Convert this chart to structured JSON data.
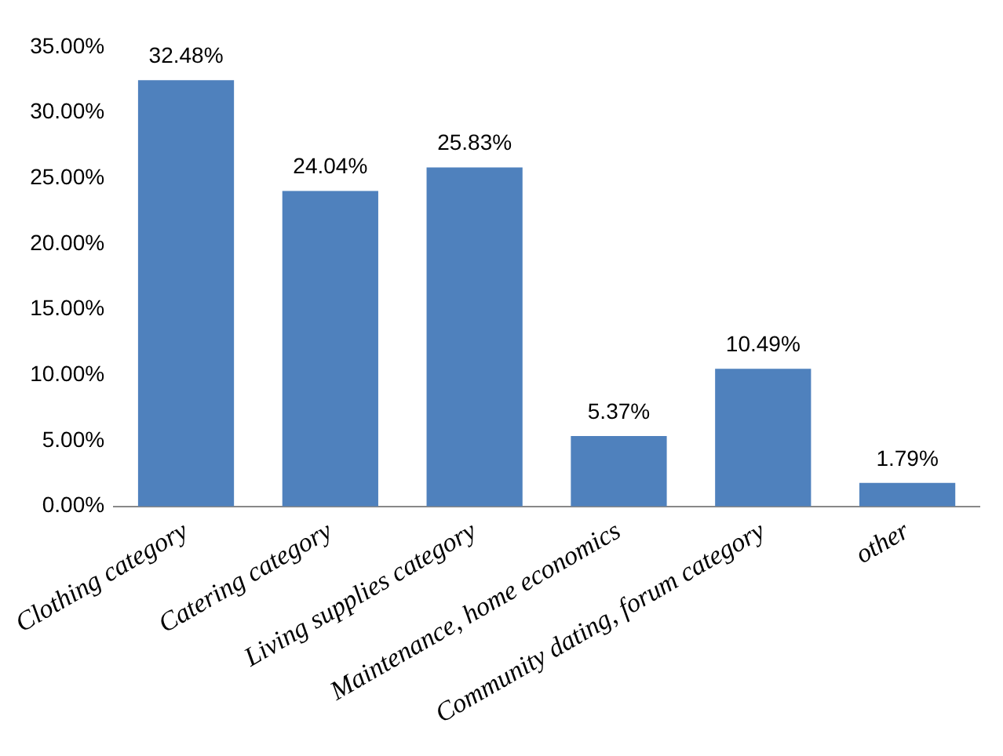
{
  "chart_data": {
    "type": "bar",
    "categories": [
      "Clothing category",
      "Catering category",
      "Living supplies category",
      "Maintenance, home economics",
      "Community dating, forum category",
      "other"
    ],
    "values": [
      32.48,
      24.04,
      25.83,
      5.37,
      10.49,
      1.79
    ],
    "value_labels": [
      "32.48%",
      "24.04%",
      "25.83%",
      "5.37%",
      "10.49%",
      "1.79%"
    ],
    "color": "#4f81bd",
    "ylim": [
      0,
      35
    ],
    "yticks": [
      {
        "value": 0,
        "label": "0.00%"
      },
      {
        "value": 5,
        "label": "5.00%"
      },
      {
        "value": 10,
        "label": "10.00%"
      },
      {
        "value": 15,
        "label": "15.00%"
      },
      {
        "value": 20,
        "label": "20.00%"
      },
      {
        "value": 25,
        "label": "25.00%"
      },
      {
        "value": 30,
        "label": "30.00%"
      },
      {
        "value": 35,
        "label": "35.00%"
      }
    ],
    "grid": false,
    "legend": false
  }
}
